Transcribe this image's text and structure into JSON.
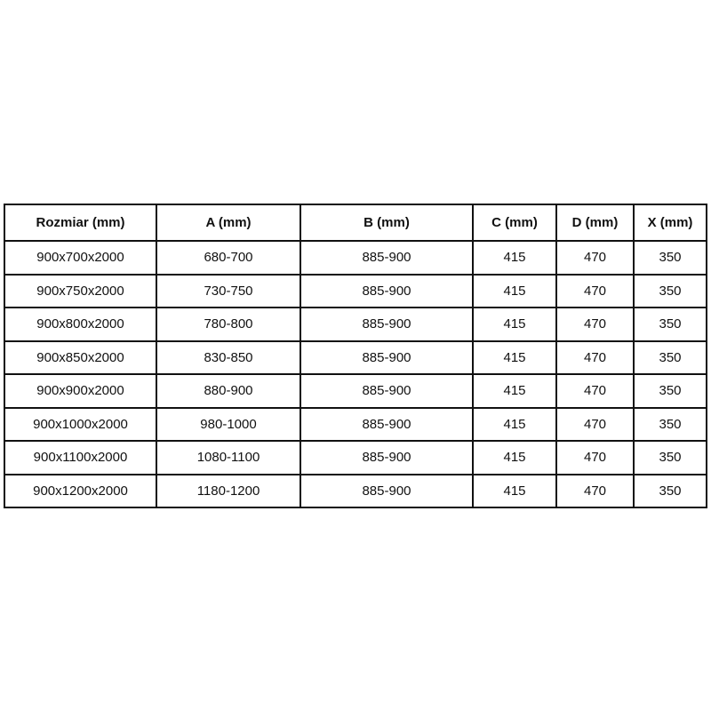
{
  "table": {
    "headers": [
      "Rozmiar (mm)",
      "A (mm)",
      "B (mm)",
      "C (mm)",
      "D (mm)",
      "X (mm)"
    ],
    "rows": [
      [
        "900x700x2000",
        "680-700",
        "885-900",
        "415",
        "470",
        "350"
      ],
      [
        "900x750x2000",
        "730-750",
        "885-900",
        "415",
        "470",
        "350"
      ],
      [
        "900x800x2000",
        "780-800",
        "885-900",
        "415",
        "470",
        "350"
      ],
      [
        "900x850x2000",
        "830-850",
        "885-900",
        "415",
        "470",
        "350"
      ],
      [
        "900x900x2000",
        "880-900",
        "885-900",
        "415",
        "470",
        "350"
      ],
      [
        "900x1000x2000",
        "980-1000",
        "885-900",
        "415",
        "470",
        "350"
      ],
      [
        "900x1100x2000",
        "1080-1100",
        "885-900",
        "415",
        "470",
        "350"
      ],
      [
        "900x1200x2000",
        "1180-1200",
        "885-900",
        "415",
        "470",
        "350"
      ]
    ]
  },
  "colors": {
    "border": "#111111",
    "text": "#111111",
    "background": "#ffffff"
  }
}
